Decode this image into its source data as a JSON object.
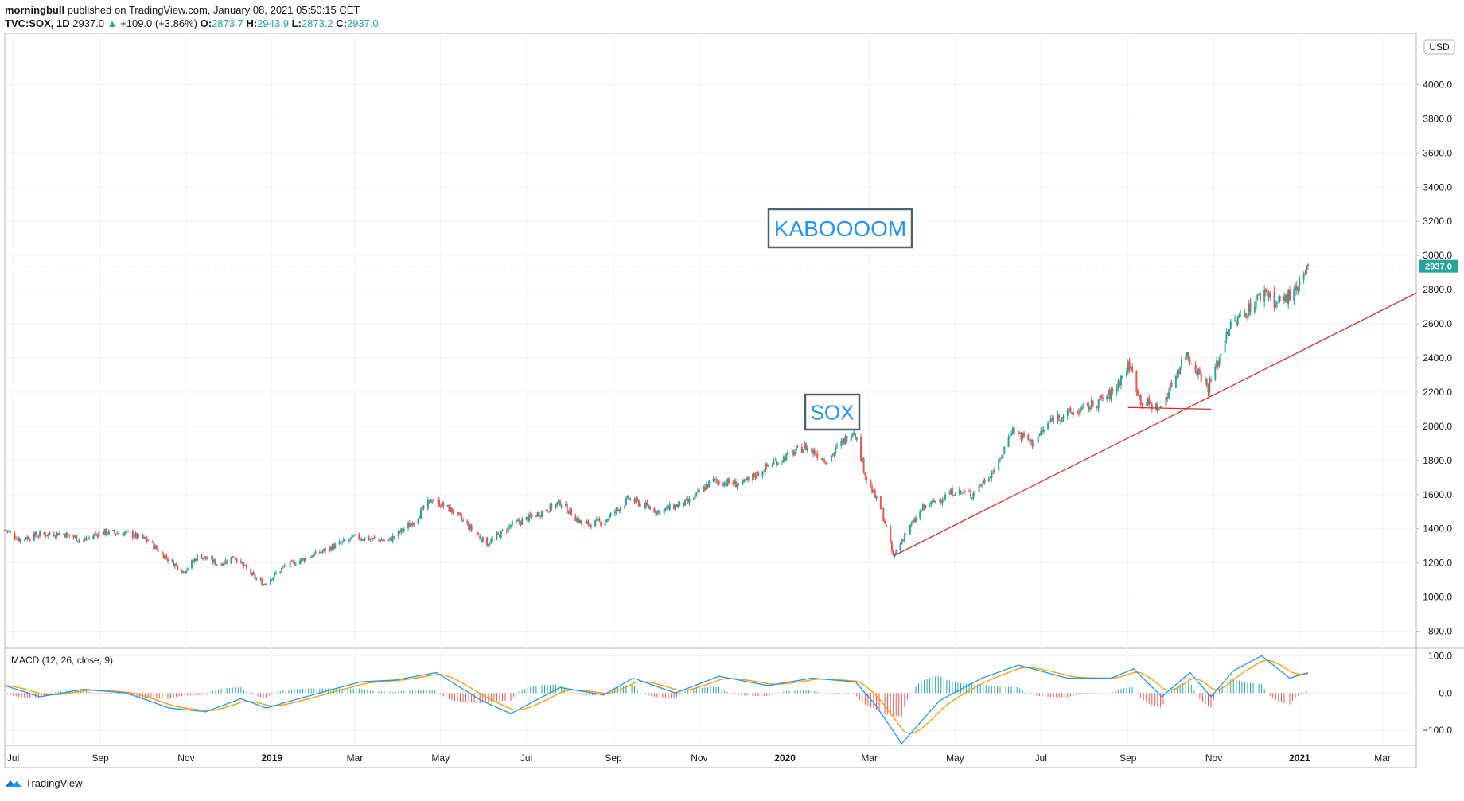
{
  "header": {
    "author": "morningbull",
    "published": "published on TradingView.com, January 08, 2021 05:50:15 CET",
    "symbol": "TVC:SOX, 1D",
    "last": "2937.0",
    "change_arrow": "▲",
    "change": "+109.0 (+3.86%)",
    "o_label": "O:",
    "o_value": "2873.7",
    "h_label": "H:",
    "h_value": "2943.9",
    "l_label": "L:",
    "l_value": "2873.2",
    "c_label": "C:",
    "c_value": "2937.0"
  },
  "footer": {
    "brand": "TradingView",
    "logo_icon": "tradingview-logo-icon"
  },
  "colors": {
    "up": "#26a69a",
    "down": "#ef5350",
    "grid": "#f0f3fa",
    "macd": "#2196f3",
    "signal": "#ff9800",
    "annotation_border": "#4a6274",
    "annotation_text": "#2196f3",
    "trendline": "#d32f2f"
  },
  "chart_data": [
    {
      "type": "candlestick",
      "symbol": "TVC:SOX",
      "interval": "1D",
      "currency": "USD",
      "last_price": 2937.0,
      "last_price_label": "2937.0",
      "ylim": [
        700,
        4300
      ],
      "y_ticks": [
        800,
        1000,
        1200,
        1400,
        1600,
        1800,
        2000,
        2200,
        2400,
        2600,
        2800,
        3000,
        3200,
        3400,
        3600,
        3800,
        4000
      ],
      "y_tick_labels": [
        "800.0",
        "1000.0",
        "1200.0",
        "1400.0",
        "1600.0",
        "1800.0",
        "2000.0",
        "2200.0",
        "2400.0",
        "2600.0",
        "2800.0",
        "3000.0",
        "3200.0",
        "3400.0",
        "3600.0",
        "3800.0",
        "4000.0"
      ],
      "x_ticks": [
        "Jul",
        "Sep",
        "Nov",
        "2019",
        "Mar",
        "May",
        "Jul",
        "Sep",
        "Nov",
        "2020",
        "Mar",
        "May",
        "Jul",
        "Sep",
        "Nov",
        "2021",
        "Mar"
      ],
      "x_tick_bold": [
        false,
        false,
        false,
        true,
        false,
        false,
        false,
        false,
        false,
        true,
        false,
        false,
        false,
        false,
        false,
        true,
        false
      ],
      "x_tick_dates": [
        "2018-07-01",
        "2018-09-01",
        "2018-11-01",
        "2019-01-01",
        "2019-03-01",
        "2019-05-01",
        "2019-07-01",
        "2019-09-01",
        "2019-11-01",
        "2020-01-01",
        "2020-03-01",
        "2020-05-01",
        "2020-07-01",
        "2020-09-01",
        "2020-11-01",
        "2021-01-01",
        "2021-03-01"
      ],
      "x_range": [
        "2018-06-25",
        "2021-03-25"
      ],
      "price_path": [
        [
          "2018-06-25",
          1395
        ],
        [
          "2018-07-05",
          1340
        ],
        [
          "2018-07-20",
          1365
        ],
        [
          "2018-08-05",
          1375
        ],
        [
          "2018-08-20",
          1330
        ],
        [
          "2018-09-01",
          1380
        ],
        [
          "2018-09-20",
          1375
        ],
        [
          "2018-10-05",
          1330
        ],
        [
          "2018-10-15",
          1250
        ],
        [
          "2018-10-30",
          1150
        ],
        [
          "2018-11-10",
          1245
        ],
        [
          "2018-11-25",
          1190
        ],
        [
          "2018-12-05",
          1240
        ],
        [
          "2018-12-20",
          1110
        ],
        [
          "2018-12-26",
          1075
        ],
        [
          "2019-01-10",
          1180
        ],
        [
          "2019-02-01",
          1250
        ],
        [
          "2019-03-01",
          1350
        ],
        [
          "2019-03-25",
          1330
        ],
        [
          "2019-04-10",
          1430
        ],
        [
          "2019-04-25",
          1575
        ],
        [
          "2019-05-10",
          1500
        ],
        [
          "2019-06-03",
          1310
        ],
        [
          "2019-06-20",
          1420
        ],
        [
          "2019-07-05",
          1470
        ],
        [
          "2019-07-25",
          1555
        ],
        [
          "2019-08-10",
          1425
        ],
        [
          "2019-08-25",
          1440
        ],
        [
          "2019-09-12",
          1575
        ],
        [
          "2019-10-03",
          1500
        ],
        [
          "2019-10-25",
          1560
        ],
        [
          "2019-11-10",
          1680
        ],
        [
          "2019-12-02",
          1660
        ],
        [
          "2019-12-20",
          1770
        ],
        [
          "2020-01-15",
          1880
        ],
        [
          "2020-01-31",
          1800
        ],
        [
          "2020-02-19",
          1985
        ],
        [
          "2020-02-28",
          1690
        ],
        [
          "2020-03-10",
          1500
        ],
        [
          "2020-03-18",
          1235
        ],
        [
          "2020-03-25",
          1350
        ],
        [
          "2020-04-08",
          1520
        ],
        [
          "2020-04-30",
          1620
        ],
        [
          "2020-05-13",
          1600
        ],
        [
          "2020-06-01",
          1780
        ],
        [
          "2020-06-10",
          1985
        ],
        [
          "2020-06-25",
          1900
        ],
        [
          "2020-07-10",
          2050
        ],
        [
          "2020-08-01",
          2100
        ],
        [
          "2020-08-20",
          2190
        ],
        [
          "2020-09-02",
          2360
        ],
        [
          "2020-09-10",
          2150
        ],
        [
          "2020-09-24",
          2100
        ],
        [
          "2020-10-12",
          2430
        ],
        [
          "2020-10-28",
          2230
        ],
        [
          "2020-11-05",
          2400
        ],
        [
          "2020-11-10",
          2560
        ],
        [
          "2020-11-25",
          2680
        ],
        [
          "2020-12-08",
          2800
        ],
        [
          "2020-12-15",
          2720
        ],
        [
          "2020-12-31",
          2790
        ],
        [
          "2021-01-07",
          2937
        ]
      ],
      "annotations": [
        "SOX",
        "KABOOOOM"
      ],
      "trendlines": [
        {
          "from": [
            "2020-03-18",
            1240
          ],
          "to": [
            "2021-03-25",
            2780
          ]
        },
        {
          "from": [
            "2020-09-01",
            2110
          ],
          "to": [
            "2020-10-30",
            2100
          ]
        }
      ]
    },
    {
      "type": "macd",
      "label": "MACD (12, 26, close, 9)",
      "ylim": [
        -140,
        120
      ],
      "y_ticks": [
        100,
        0,
        -100
      ],
      "y_tick_labels": [
        "100.0",
        "0.0",
        "−100.0"
      ],
      "series": [
        {
          "name": "MACD",
          "values": [
            [
              "2018-06-25",
              20
            ],
            [
              "2018-07-20",
              -10
            ],
            [
              "2018-08-20",
              10
            ],
            [
              "2018-09-20",
              0
            ],
            [
              "2018-10-20",
              -40
            ],
            [
              "2018-11-15",
              -50
            ],
            [
              "2018-12-10",
              -15
            ],
            [
              "2018-12-28",
              -40
            ],
            [
              "2019-01-25",
              -10
            ],
            [
              "2019-03-05",
              30
            ],
            [
              "2019-03-30",
              35
            ],
            [
              "2019-04-28",
              55
            ],
            [
              "2019-05-30",
              -20
            ],
            [
              "2019-06-20",
              -55
            ],
            [
              "2019-07-25",
              15
            ],
            [
              "2019-08-25",
              -5
            ],
            [
              "2019-09-15",
              40
            ],
            [
              "2019-10-15",
              0
            ],
            [
              "2019-11-15",
              45
            ],
            [
              "2019-12-20",
              20
            ],
            [
              "2020-01-20",
              40
            ],
            [
              "2020-02-20",
              30
            ],
            [
              "2020-03-05",
              -30
            ],
            [
              "2020-03-24",
              -135
            ],
            [
              "2020-04-20",
              -20
            ],
            [
              "2020-05-20",
              40
            ],
            [
              "2020-06-15",
              75
            ],
            [
              "2020-07-20",
              40
            ],
            [
              "2020-08-20",
              40
            ],
            [
              "2020-09-05",
              65
            ],
            [
              "2020-09-25",
              -10
            ],
            [
              "2020-10-15",
              55
            ],
            [
              "2020-10-30",
              -10
            ],
            [
              "2020-11-15",
              60
            ],
            [
              "2020-12-05",
              100
            ],
            [
              "2020-12-25",
              40
            ],
            [
              "2021-01-07",
              55
            ]
          ]
        }
      ]
    }
  ]
}
